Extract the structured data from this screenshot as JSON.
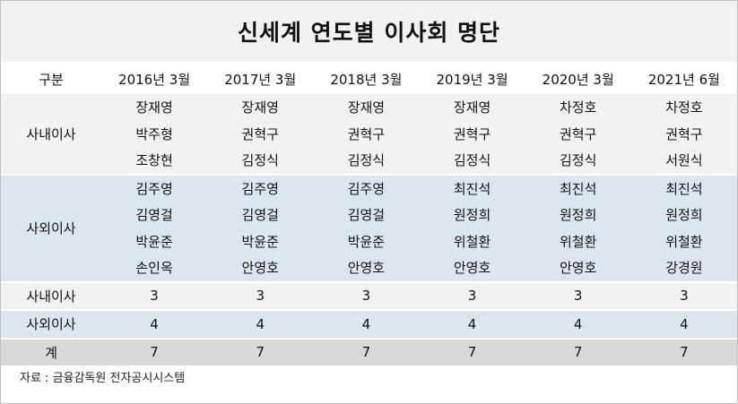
{
  "title": "신세계 연도별 이사회 명단",
  "header": [
    "구분",
    "2016년 3월",
    "2017년 3월",
    "2018년 3월",
    "2019년 3월",
    "2020년 3월",
    "2021년 6월"
  ],
  "inside_label": "사내이사",
  "inside_rows": [
    [
      "장재영",
      "장재영",
      "장재영",
      "장재영",
      "차정호",
      "차정호"
    ],
    [
      "박주형",
      "권혁구",
      "권혁구",
      "권혁구",
      "권혁구",
      "권혁구"
    ],
    [
      "조창현",
      "김정식",
      "김정식",
      "김정식",
      "김정식",
      "서원식"
    ]
  ],
  "outside_label": "사외이사",
  "outside_rows": [
    [
      "김주영",
      "김주영",
      "김주영",
      "최진석",
      "최진석",
      "최진석"
    ],
    [
      "김영걸",
      "김영걸",
      "김영걸",
      "원정희",
      "원정희",
      "원정희"
    ],
    [
      "박윤준",
      "박윤준",
      "박윤준",
      "위철환",
      "위철환",
      "위철환"
    ],
    [
      "손인옥",
      "안영호",
      "안영호",
      "안영호",
      "안영호",
      "강경원"
    ]
  ],
  "count_inside": {
    "label": "사내이사",
    "values": [
      "3",
      "3",
      "3",
      "3",
      "3",
      "3"
    ]
  },
  "count_outside": {
    "label": "사외이사",
    "values": [
      "4",
      "4",
      "4",
      "4",
      "4",
      "4"
    ]
  },
  "total": {
    "label": "계",
    "values": [
      "7",
      "7",
      "7",
      "7",
      "7",
      "7"
    ]
  },
  "source": "자료 : 금융감독원 전자공시시스템"
}
